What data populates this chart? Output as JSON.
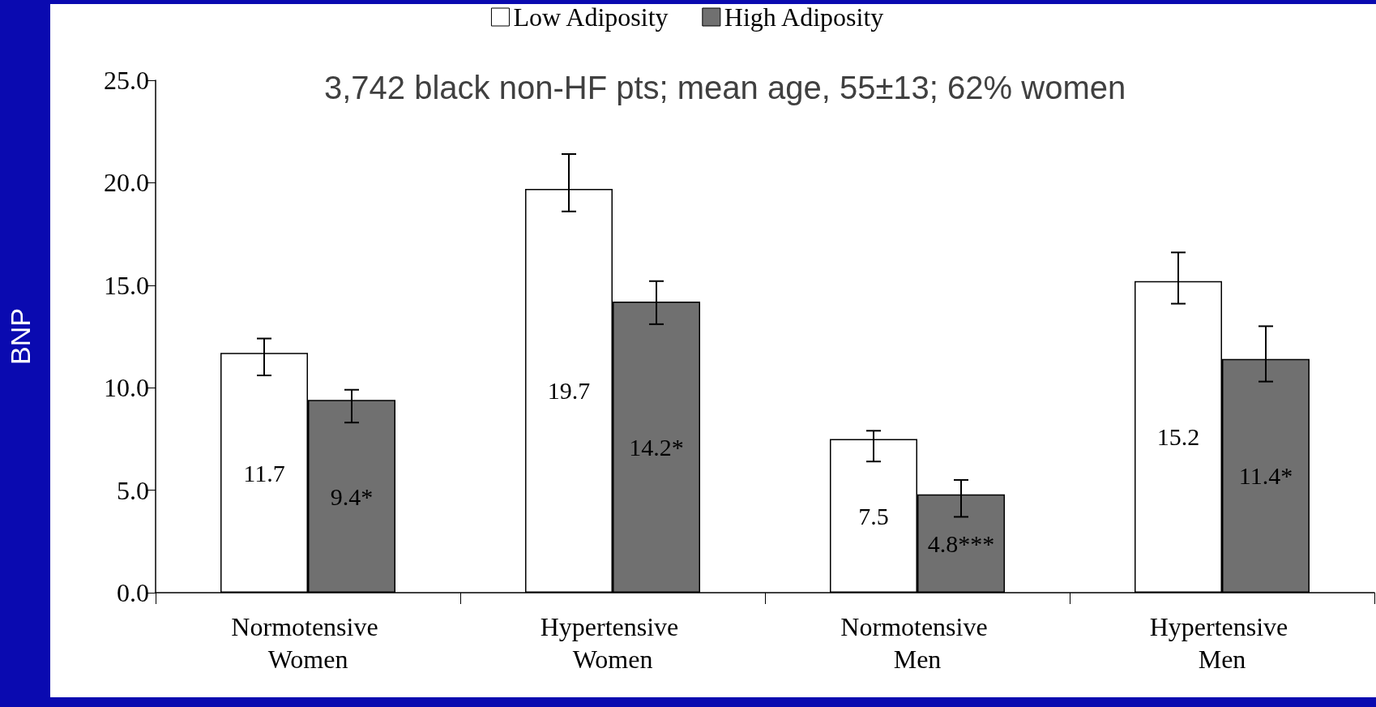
{
  "chart_data": {
    "type": "bar",
    "ylabel": "BNP",
    "categories": [
      "Normotensive Women",
      "Hypertensive Women",
      "Normotensive Men",
      "Hypertensive Men"
    ],
    "series": [
      {
        "name": "Low Adiposity",
        "color": "#ffffff",
        "values": [
          11.7,
          19.7,
          7.5,
          15.2
        ],
        "value_labels": [
          "11.7",
          "19.7",
          "7.5",
          "15.2"
        ],
        "errors": [
          [
            10.6,
            12.4
          ],
          [
            18.6,
            21.4
          ],
          [
            6.4,
            7.9
          ],
          [
            14.1,
            16.6
          ]
        ]
      },
      {
        "name": "High Adiposity",
        "color": "#707070",
        "values": [
          9.4,
          14.2,
          4.8,
          11.4
        ],
        "value_labels": [
          "9.4*",
          "14.2*",
          "4.8***",
          "11.4*"
        ],
        "errors": [
          [
            8.3,
            9.9
          ],
          [
            13.1,
            15.2
          ],
          [
            3.7,
            5.5
          ],
          [
            10.3,
            13.0
          ]
        ]
      }
    ],
    "ylim": [
      0,
      25
    ],
    "yticks": [
      {
        "value": 0,
        "label": "0.0"
      },
      {
        "value": 5,
        "label": "5.0"
      },
      {
        "value": 10,
        "label": "10.0"
      },
      {
        "value": 15,
        "label": "15.0"
      },
      {
        "value": 20,
        "label": "20.0"
      },
      {
        "value": 25,
        "label": "25.0"
      }
    ],
    "grid": false,
    "legend": "top",
    "annotations": [
      "3,742 black non-HF pts; mean age, 55±13; 62% women"
    ]
  }
}
